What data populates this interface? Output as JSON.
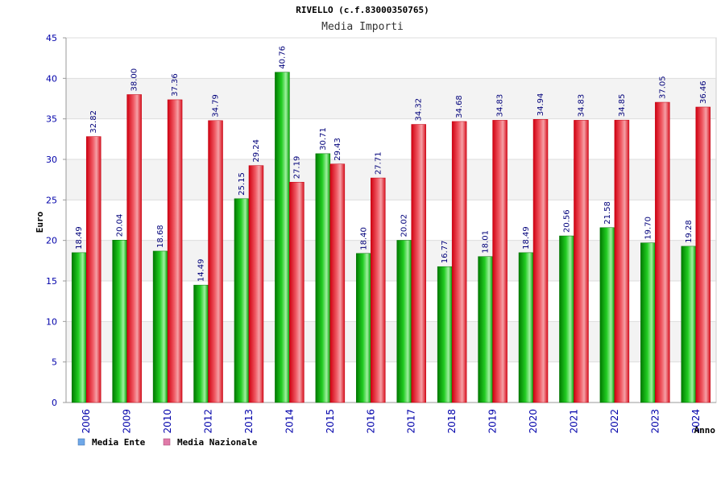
{
  "chart_data": {
    "type": "bar",
    "title": "RIVELLO (c.f.83000350765)",
    "subtitle": "Media Importi",
    "xlabel": "Anno",
    "ylabel": "Euro",
    "ylim": [
      0,
      45
    ],
    "yticks": [
      "0",
      "5",
      "10",
      "15",
      "20",
      "25",
      "30",
      "35",
      "40",
      "45"
    ],
    "categories": [
      "2006",
      "2009",
      "2010",
      "2012",
      "2013",
      "2014",
      "2015",
      "2016",
      "2017",
      "2018",
      "2019",
      "2020",
      "2021",
      "2022",
      "2023",
      "2024"
    ],
    "series": [
      {
        "name": "Media Ente",
        "color": "#0a9a0a",
        "legend_color": "#6fa8e8",
        "values": [
          18.49,
          20.04,
          18.68,
          14.49,
          25.15,
          40.76,
          30.71,
          18.4,
          20.02,
          16.77,
          18.01,
          18.49,
          20.56,
          21.58,
          19.7,
          19.28
        ],
        "labels": [
          "18.49",
          "20.04",
          "18.68",
          "14.49",
          "25.15",
          "40.76",
          "30.71",
          "18.40",
          "20.02",
          "16.77",
          "18.01",
          "18.49",
          "20.56",
          "21.58",
          "19.70",
          "19.28"
        ]
      },
      {
        "name": "Media Nazionale",
        "color": "#e0202a",
        "legend_color": "#e07aa8",
        "values": [
          32.82,
          38.0,
          37.36,
          34.79,
          29.24,
          27.19,
          29.43,
          27.71,
          34.32,
          34.68,
          34.83,
          34.94,
          34.83,
          34.85,
          37.05,
          36.46
        ],
        "labels": [
          "32.82",
          "38.00",
          "37.36",
          "34.79",
          "29.24",
          "27.19",
          "29.43",
          "27.71",
          "34.32",
          "34.68",
          "34.83",
          "34.94",
          "34.83",
          "34.85",
          "37.05",
          "36.46"
        ]
      }
    ],
    "legend": "bottom-left",
    "grid": true
  }
}
